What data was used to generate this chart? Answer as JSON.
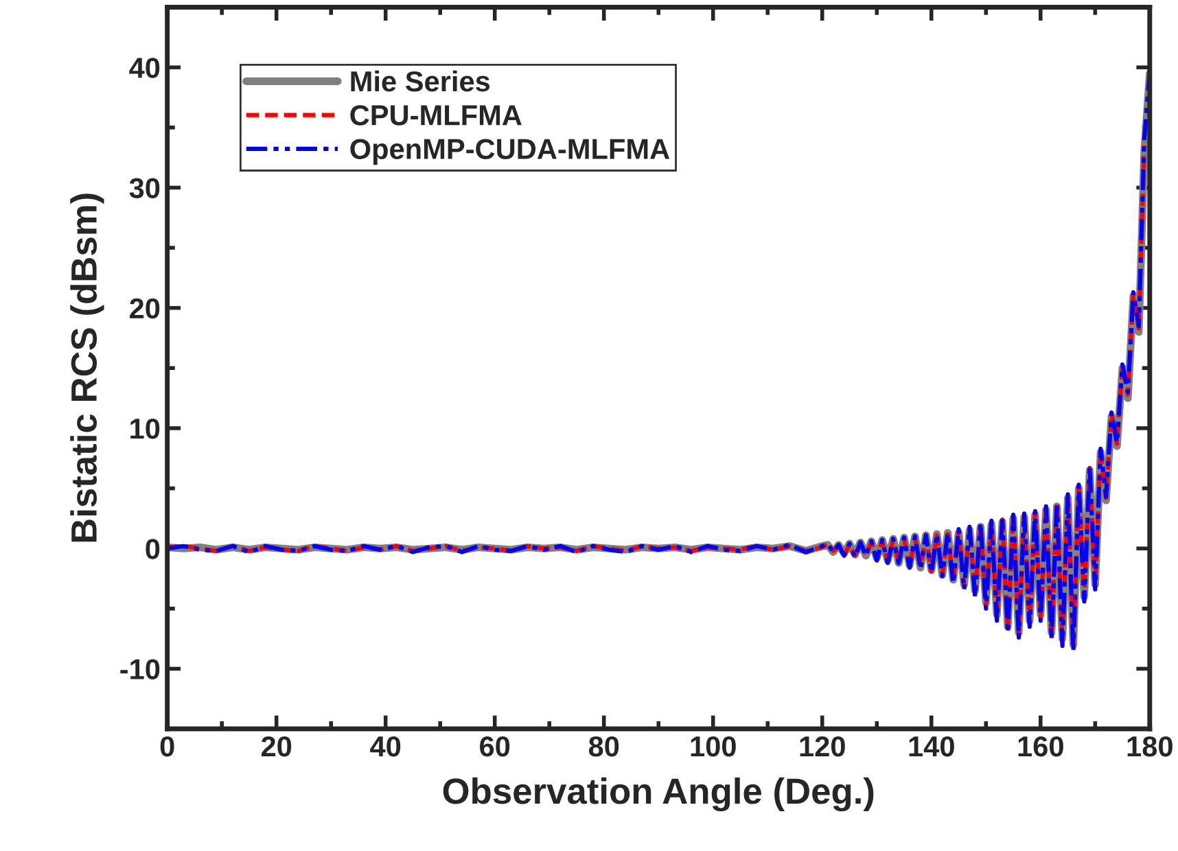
{
  "chart_data": {
    "type": "line",
    "xlabel": "Observation Angle (Deg.)",
    "ylabel": "Bistatic RCS (dBsm)",
    "xlim": [
      0,
      180
    ],
    "ylim": [
      -15,
      45
    ],
    "xticks": [
      0,
      20,
      40,
      60,
      80,
      100,
      120,
      140,
      160,
      180
    ],
    "yticks": [
      -10,
      0,
      10,
      20,
      30,
      40
    ],
    "grid": false,
    "legend": "top left",
    "marker": "none",
    "x": [
      0,
      3,
      6,
      9,
      12,
      15,
      18,
      21,
      24,
      27,
      30,
      33,
      36,
      39,
      42,
      45,
      48,
      51,
      54,
      57,
      60,
      63,
      66,
      69,
      72,
      75,
      78,
      81,
      84,
      87,
      90,
      93,
      96,
      99,
      102,
      105,
      108,
      111,
      114,
      117,
      120,
      121,
      122,
      123,
      124,
      125,
      126,
      127,
      128,
      129,
      130,
      131,
      132,
      133,
      134,
      135,
      136,
      137,
      138,
      139,
      140,
      141,
      142,
      143,
      144,
      145,
      146,
      147,
      148,
      149,
      150,
      151,
      152,
      153,
      154,
      155,
      156,
      157,
      158,
      159,
      160,
      161,
      162,
      163,
      164,
      165,
      166,
      167,
      168,
      169,
      170,
      171,
      172,
      173,
      174,
      175,
      176,
      177,
      178,
      179,
      180
    ],
    "series": [
      {
        "name": "Mie Series",
        "color": "#808080",
        "line_style": "solid",
        "values": [
          0.1,
          0.0,
          0.1,
          -0.1,
          0.1,
          -0.1,
          0.1,
          0.0,
          -0.1,
          0.1,
          0.0,
          -0.1,
          0.1,
          0.0,
          0.1,
          -0.1,
          0.0,
          0.1,
          -0.1,
          0.1,
          0.0,
          -0.1,
          0.1,
          0.0,
          0.1,
          -0.1,
          0.1,
          0.0,
          -0.1,
          0.1,
          0.0,
          0.1,
          -0.1,
          0.1,
          0.0,
          -0.1,
          0.1,
          0.0,
          0.2,
          -0.2,
          0.2,
          0.3,
          -0.3,
          0.3,
          -0.4,
          0.4,
          -0.5,
          0.5,
          -0.6,
          0.6,
          -0.8,
          0.7,
          -1.0,
          0.8,
          -1.2,
          0.9,
          -1.4,
          1.0,
          -1.6,
          1.1,
          -1.8,
          1.2,
          -2.2,
          1.3,
          -2.6,
          1.3,
          -3.0,
          1.5,
          -3.5,
          1.8,
          -4.5,
          2.0,
          -5.5,
          2.2,
          -6.5,
          2.5,
          -7.0,
          2.6,
          -6.0,
          2.8,
          -5.5,
          3.2,
          -7.0,
          3.5,
          -7.5,
          4.2,
          -8.0,
          5.0,
          -4.0,
          6.5,
          -3.0,
          8.0,
          4.0,
          11.0,
          8.5,
          15.0,
          12.5,
          21.0,
          18.0,
          33.0,
          39.5
        ]
      },
      {
        "name": "CPU-MLFMA",
        "color": "#ff0000",
        "line_style": "dashed",
        "values": [
          0.1,
          0.2,
          0.0,
          -0.2,
          0.2,
          -0.2,
          0.1,
          -0.1,
          -0.2,
          0.2,
          0.0,
          -0.2,
          0.1,
          -0.1,
          0.2,
          -0.2,
          0.0,
          0.2,
          -0.2,
          0.1,
          0.0,
          -0.2,
          0.2,
          0.0,
          0.1,
          -0.2,
          0.2,
          0.0,
          -0.2,
          0.2,
          0.0,
          0.1,
          -0.2,
          0.1,
          0.0,
          -0.1,
          0.2,
          -0.1,
          0.2,
          -0.2,
          0.1,
          0.4,
          -0.2,
          0.2,
          -0.5,
          0.3,
          -0.6,
          0.4,
          -0.5,
          0.5,
          -0.9,
          0.6,
          -1.1,
          0.7,
          -1.1,
          0.8,
          -1.5,
          0.9,
          -1.5,
          1.0,
          -1.9,
          1.1,
          -2.1,
          1.2,
          -2.7,
          1.5,
          -3.2,
          1.7,
          -3.8,
          2.0,
          -4.8,
          2.2,
          -5.8,
          2.4,
          -6.8,
          2.7,
          -7.2,
          2.8,
          -6.3,
          3.0,
          -5.8,
          3.4,
          -7.3,
          3.7,
          -7.8,
          4.4,
          -8.2,
          5.2,
          -4.2,
          6.7,
          -3.2,
          8.2,
          4.2,
          11.2,
          8.7,
          15.2,
          12.8,
          21.2,
          18.3,
          33.5,
          null
        ]
      },
      {
        "name": "OpenMP-CUDA-MLFMA",
        "color": "#0000ff",
        "line_style": "dashdot",
        "values": [
          0.0,
          0.2,
          -0.1,
          -0.2,
          0.2,
          -0.3,
          0.2,
          -0.1,
          -0.2,
          0.2,
          -0.1,
          -0.2,
          0.2,
          -0.1,
          0.2,
          -0.3,
          0.1,
          0.2,
          -0.3,
          0.2,
          -0.1,
          -0.2,
          0.2,
          -0.1,
          0.2,
          -0.3,
          0.2,
          -0.1,
          -0.3,
          0.2,
          -0.1,
          0.2,
          -0.3,
          0.2,
          -0.1,
          -0.2,
          0.2,
          -0.1,
          0.3,
          -0.3,
          0.2,
          0.4,
          -0.3,
          0.3,
          -0.6,
          0.4,
          -0.7,
          0.5,
          -0.6,
          0.6,
          -1.0,
          0.7,
          -1.2,
          0.8,
          -1.2,
          0.9,
          -1.6,
          1.0,
          -1.7,
          1.1,
          -2.0,
          1.2,
          -2.3,
          1.3,
          -2.9,
          1.6,
          -3.4,
          1.8,
          -4.0,
          2.1,
          -5.0,
          2.3,
          -6.0,
          2.5,
          -7.0,
          2.8,
          -7.4,
          2.9,
          -6.5,
          3.1,
          -6.0,
          3.5,
          -7.5,
          3.8,
          -8.1,
          4.5,
          -8.5,
          5.3,
          -4.4,
          6.8,
          -3.4,
          8.3,
          4.3,
          11.3,
          8.8,
          15.3,
          13.0,
          21.3,
          18.5,
          34.0,
          39.7
        ]
      }
    ]
  }
}
